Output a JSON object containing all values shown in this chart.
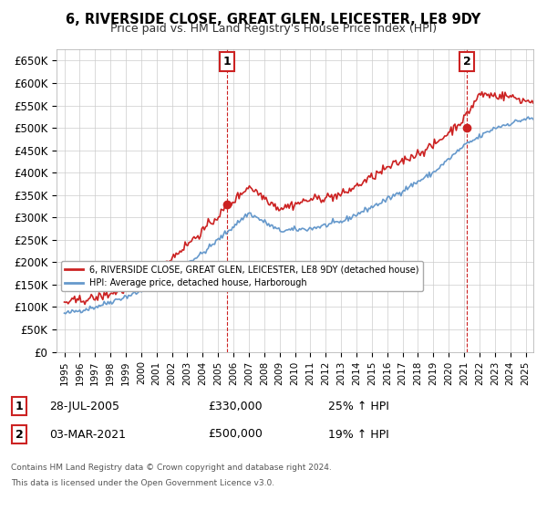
{
  "title": "6, RIVERSIDE CLOSE, GREAT GLEN, LEICESTER, LE8 9DY",
  "subtitle": "Price paid vs. HM Land Registry's House Price Index (HPI)",
  "ylabel_ticks": [
    "£0",
    "£50K",
    "£100K",
    "£150K",
    "£200K",
    "£250K",
    "£300K",
    "£350K",
    "£400K",
    "£450K",
    "£500K",
    "£550K",
    "£600K",
    "£650K"
  ],
  "ytick_values": [
    0,
    50000,
    100000,
    150000,
    200000,
    250000,
    300000,
    350000,
    400000,
    450000,
    500000,
    550000,
    600000,
    650000
  ],
  "ylim": [
    0,
    675000
  ],
  "xlim_start": 1994.5,
  "xlim_end": 2025.5,
  "xtick_labels": [
    "1995",
    "1996",
    "1997",
    "1998",
    "1999",
    "2000",
    "2001",
    "2002",
    "2003",
    "2004",
    "2005",
    "2006",
    "2007",
    "2008",
    "2009",
    "2010",
    "2011",
    "2012",
    "2013",
    "2014",
    "2015",
    "2016",
    "2017",
    "2018",
    "2019",
    "2020",
    "2021",
    "2022",
    "2023",
    "2024",
    "2025"
  ],
  "marker1_x": 2005.57,
  "marker1_y": 330000,
  "marker1_label": "1",
  "marker1_date": "28-JUL-2005",
  "marker1_price": "£330,000",
  "marker1_hpi": "25% ↑ HPI",
  "marker2_x": 2021.17,
  "marker2_y": 500000,
  "marker2_label": "2",
  "marker2_date": "03-MAR-2021",
  "marker2_price": "£500,000",
  "marker2_hpi": "19% ↑ HPI",
  "hpi_line_color": "#6699cc",
  "price_line_color": "#cc2222",
  "marker_box_color": "#cc2222",
  "grid_color": "#cccccc",
  "background_color": "#ffffff",
  "legend_label1": "6, RIVERSIDE CLOSE, GREAT GLEN, LEICESTER, LE8 9DY (detached house)",
  "legend_label2": "HPI: Average price, detached house, Harborough",
  "footer1": "Contains HM Land Registry data © Crown copyright and database right 2024.",
  "footer2": "This data is licensed under the Open Government Licence v3.0."
}
